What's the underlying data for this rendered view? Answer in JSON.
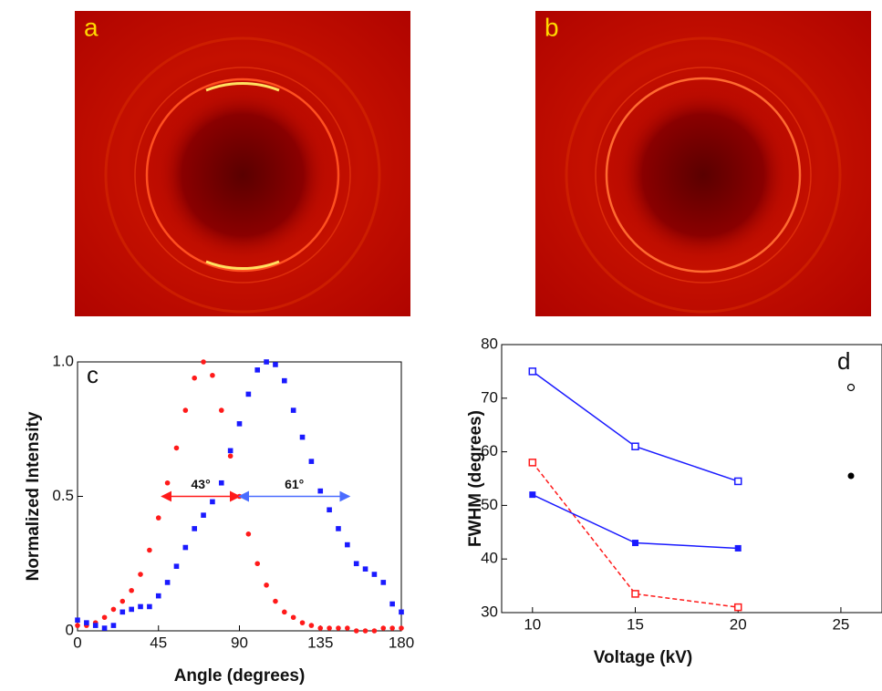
{
  "image_panels": [
    {
      "label": "a"
    },
    {
      "label": "b"
    }
  ],
  "chart_data": [
    {
      "type": "scatter",
      "panel_label": "c",
      "x_label": "Angle (degrees)",
      "y_label": "Normalized Intensity",
      "xlim": [
        0,
        180
      ],
      "xticks": [
        0,
        45,
        90,
        135,
        180
      ],
      "ylim": [
        0,
        1
      ],
      "yticks": [
        0,
        0.5,
        {
          "value": 1,
          "label": "1.0"
        }
      ],
      "x": [
        0,
        5,
        10,
        15,
        20,
        25,
        30,
        35,
        40,
        45,
        50,
        55,
        60,
        65,
        70,
        75,
        80,
        85,
        90,
        95,
        100,
        105,
        110,
        115,
        120,
        125,
        130,
        135,
        140,
        145,
        150,
        155,
        160,
        165,
        170,
        175,
        180
      ],
      "series": [
        {
          "color": "#ff1a1a",
          "marker": "circle",
          "values": [
            0.02,
            0.02,
            0.03,
            0.05,
            0.08,
            0.11,
            0.15,
            0.21,
            0.3,
            0.42,
            0.55,
            0.68,
            0.82,
            0.94,
            1.0,
            0.95,
            0.82,
            0.65,
            0.5,
            0.36,
            0.25,
            0.17,
            0.11,
            0.07,
            0.05,
            0.03,
            0.02,
            0.01,
            0.01,
            0.01,
            0.01,
            0,
            0,
            0,
            0.01,
            0.01,
            0.01
          ]
        },
        {
          "color": "#1a1aff",
          "marker": "square",
          "values": [
            0.04,
            0.03,
            0.02,
            0.01,
            0.02,
            0.07,
            0.08,
            0.09,
            0.09,
            0.13,
            0.18,
            0.24,
            0.31,
            0.38,
            0.43,
            0.48,
            0.55,
            0.67,
            0.77,
            0.88,
            0.97,
            1.0,
            0.99,
            0.93,
            0.82,
            0.72,
            0.63,
            0.52,
            0.45,
            0.38,
            0.32,
            0.25,
            0.23,
            0.21,
            0.18,
            0.1,
            0.07
          ]
        }
      ],
      "annotations": [
        {
          "text": "43°",
          "x1": 47,
          "x2": 90,
          "y": 0.5,
          "color": "#ff1a1a"
        },
        {
          "text": "61°",
          "x1": 90,
          "x2": 151,
          "y": 0.5,
          "color": "#4a6cff"
        }
      ]
    },
    {
      "type": "line",
      "panel_label": "d",
      "x_label": "Voltage (kV)",
      "y_label": "FWHM (degrees)",
      "xlim": [
        8.5,
        27
      ],
      "xticks": [
        10,
        15,
        20,
        25
      ],
      "ylim": [
        30,
        80
      ],
      "yticks": [
        30,
        40,
        50,
        60,
        70,
        80
      ],
      "x": [
        10,
        15,
        20
      ],
      "series": [
        {
          "color": "#1a1aff",
          "marker": "open-square",
          "dash": false,
          "values": [
            75,
            61,
            54.5
          ]
        },
        {
          "color": "#ff1a1a",
          "marker": "open-square",
          "dash": true,
          "values": [
            58,
            33.5,
            31
          ]
        },
        {
          "color": "#1a1aff",
          "marker": "filled-square",
          "dash": false,
          "values": [
            52,
            43,
            42
          ]
        }
      ]
    }
  ]
}
